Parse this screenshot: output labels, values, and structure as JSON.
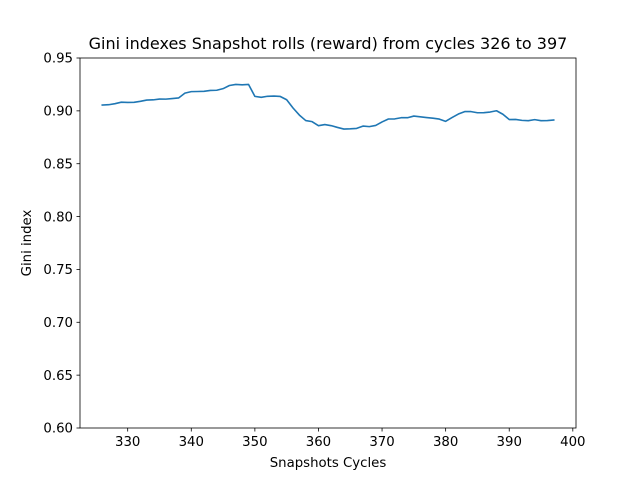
{
  "chart_data": {
    "type": "line",
    "title": "Gini indexes Snapshot rolls (reward) from cycles 326 to 397",
    "xlabel": "Snapshots Cycles",
    "ylabel": "Gini index",
    "xlim": [
      322.5,
      400.5
    ],
    "ylim": [
      0.6,
      0.95
    ],
    "xticks": [
      330,
      340,
      350,
      360,
      370,
      380,
      390,
      400
    ],
    "yticks": [
      0.6,
      0.65,
      0.7,
      0.75,
      0.8,
      0.85,
      0.9,
      0.95
    ],
    "ytick_labels": [
      "0.60",
      "0.65",
      "0.70",
      "0.75",
      "0.80",
      "0.85",
      "0.90",
      "0.95"
    ],
    "grid": false,
    "series": [
      {
        "color": "#1f77b4",
        "x": [
          326,
          327,
          328,
          329,
          330,
          331,
          332,
          333,
          334,
          335,
          336,
          337,
          338,
          339,
          340,
          341,
          342,
          343,
          344,
          345,
          346,
          347,
          348,
          349,
          350,
          351,
          352,
          353,
          354,
          355,
          356,
          357,
          358,
          359,
          360,
          361,
          362,
          363,
          364,
          365,
          366,
          367,
          368,
          369,
          370,
          371,
          372,
          373,
          374,
          375,
          376,
          377,
          378,
          379,
          380,
          381,
          382,
          383,
          384,
          385,
          386,
          387,
          388,
          389,
          390,
          391,
          392,
          393,
          394,
          395,
          396,
          397
        ],
        "y": [
          0.9055,
          0.9058,
          0.9068,
          0.9082,
          0.908,
          0.9081,
          0.909,
          0.9102,
          0.9104,
          0.9112,
          0.9111,
          0.9116,
          0.9122,
          0.9168,
          0.9182,
          0.9183,
          0.9185,
          0.9193,
          0.9195,
          0.921,
          0.924,
          0.925,
          0.9246,
          0.925,
          0.9137,
          0.9128,
          0.9138,
          0.914,
          0.9136,
          0.9105,
          0.9027,
          0.896,
          0.8908,
          0.8898,
          0.886,
          0.887,
          0.886,
          0.8843,
          0.8828,
          0.883,
          0.8834,
          0.8856,
          0.8851,
          0.8862,
          0.8895,
          0.8923,
          0.8924,
          0.8935,
          0.8935,
          0.8951,
          0.8944,
          0.8937,
          0.8931,
          0.8922,
          0.8901,
          0.8937,
          0.897,
          0.8993,
          0.8993,
          0.8982,
          0.8983,
          0.8989,
          0.9001,
          0.8968,
          0.8918,
          0.8919,
          0.891,
          0.8907,
          0.8917,
          0.8907,
          0.8908,
          0.8913
        ]
      }
    ]
  }
}
